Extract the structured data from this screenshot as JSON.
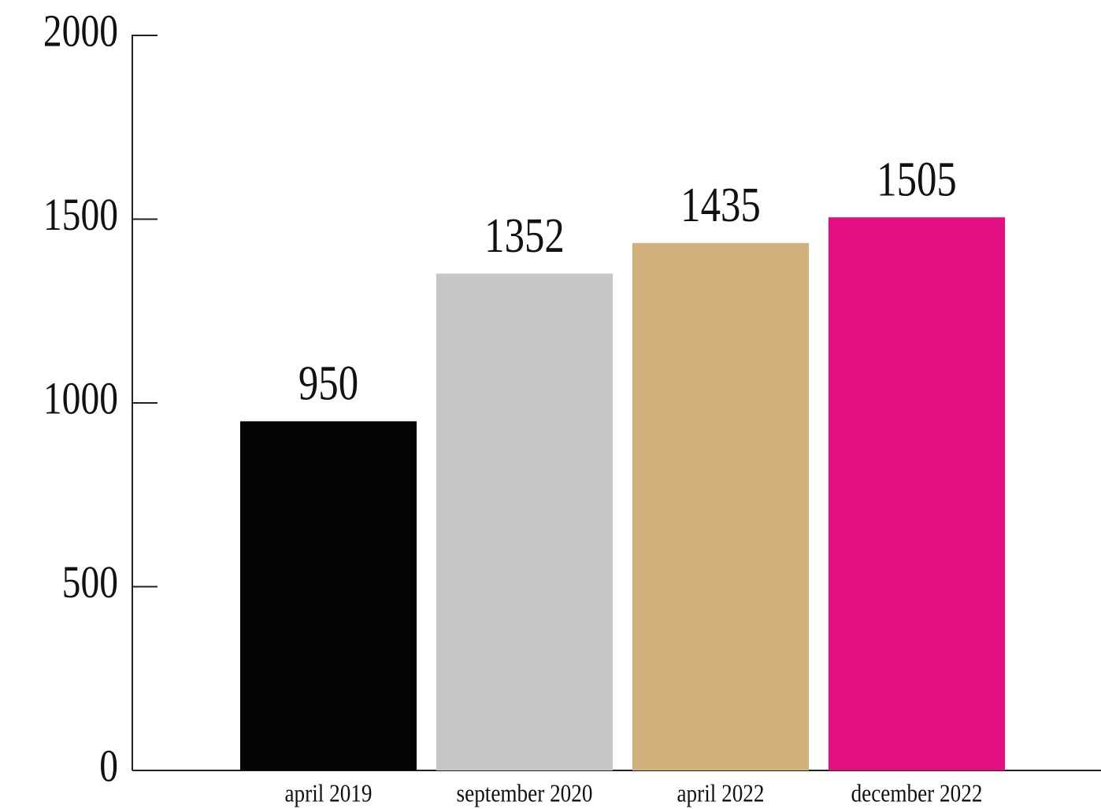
{
  "chart_data": {
    "type": "bar",
    "categories": [
      "april 2019",
      "september 2020",
      "april 2022",
      "december 2022"
    ],
    "values": [
      950,
      1352,
      1435,
      1505
    ],
    "colors": [
      "#050505",
      "#c6c6c6",
      "#d2b07c",
      "#e20f80"
    ],
    "ylim": [
      0,
      2000
    ],
    "yticks": [
      0,
      500,
      1000,
      1500,
      2000
    ]
  }
}
